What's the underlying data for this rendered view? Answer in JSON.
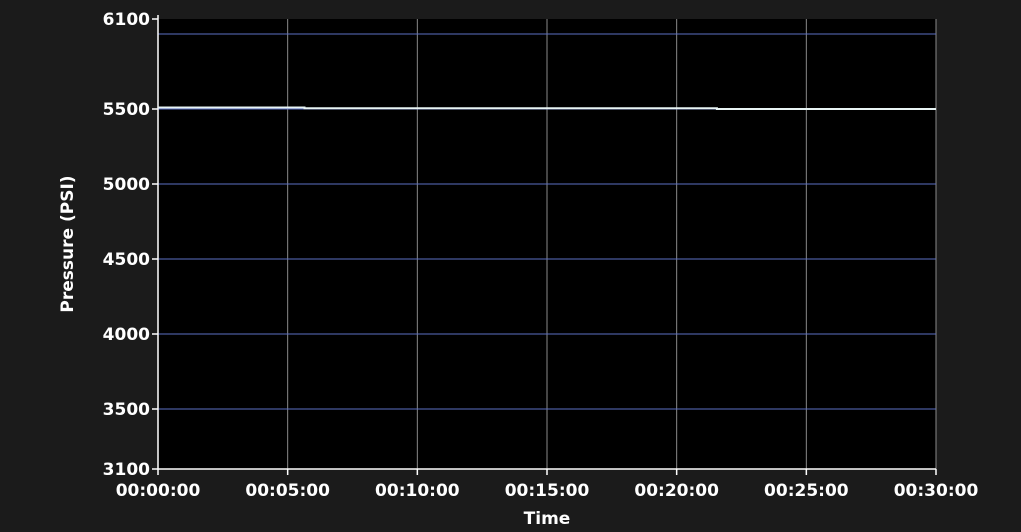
{
  "chart_data": {
    "type": "line",
    "title": "",
    "xlabel": "Time",
    "ylabel": "Pressure (PSI)",
    "x_tick_labels": [
      "00:00:00",
      "00:05:00",
      "00:10:00",
      "00:15:00",
      "00:20:00",
      "00:25:00",
      "00:30:00"
    ],
    "x_ticks_min": [
      0,
      5,
      10,
      15,
      20,
      25,
      30
    ],
    "xlim_min": [
      0,
      30
    ],
    "y_ticks": [
      6100,
      5500,
      5000,
      4500,
      4000,
      3500,
      3100
    ],
    "y_gridlines": [
      6000,
      5500,
      5000,
      4500,
      4000,
      3500
    ],
    "ylim": [
      3100,
      6100
    ],
    "grid": true,
    "legend": "none",
    "series": [
      {
        "x_min": [
          0,
          5.65,
          5.65,
          21.55,
          21.55,
          30
        ],
        "y": [
          5510,
          5510,
          5505,
          5505,
          5500,
          5500
        ],
        "color": "#e8f4f4"
      }
    ],
    "colors": {
      "background": "#000000",
      "frame": "#1b1b1b",
      "horizontal_grid": "#5b6fc4",
      "vertical_grid": "#8a8a8a",
      "text": "#ffffff"
    }
  }
}
